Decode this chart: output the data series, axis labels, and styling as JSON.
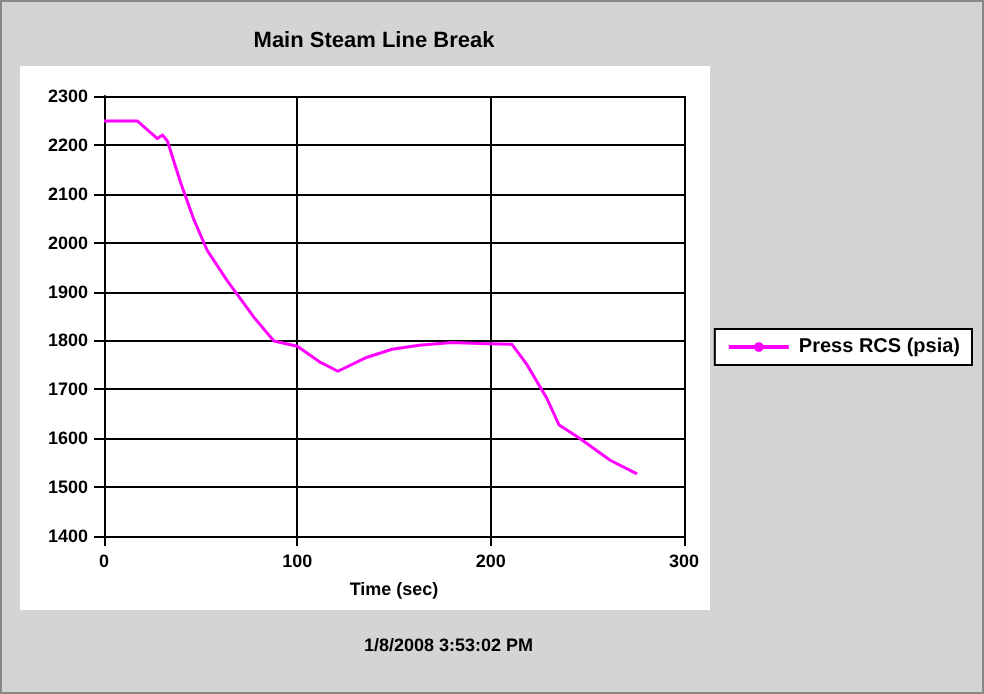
{
  "chart_data": {
    "type": "line",
    "title": "Main Steam Line Break",
    "xlabel": "Time (sec)",
    "annotations": [
      "1/8/2008 3:53:02 PM"
    ],
    "x": [
      0,
      17.2,
      27.6,
      30.3,
      32.8,
      39.7,
      46.6,
      53.4,
      63.8,
      77.6,
      87.9,
      100,
      112,
      121,
      135,
      149,
      163,
      180,
      194,
      211,
      218.7,
      229,
      235.4,
      246,
      261.8,
      275.7
    ],
    "series": [
      {
        "name": "Press RCS (psia)",
        "color": "#ff00ff",
        "values": [
          2249,
          2249,
          2213,
          2220,
          2208,
          2122,
          2046,
          1984,
          1922,
          1847,
          1799,
          1788,
          1755,
          1737,
          1764,
          1782,
          1790,
          1796,
          1794,
          1792,
          1751,
          1682,
          1627,
          1600,
          1555,
          1527
        ]
      }
    ],
    "xlim": [
      0,
      300
    ],
    "xticks": [
      0,
      100,
      200,
      300
    ],
    "ylim": [
      1400,
      2300
    ],
    "yticks": [
      1400,
      1500,
      1600,
      1700,
      1800,
      1900,
      2000,
      2100,
      2200,
      2300
    ],
    "grid": true,
    "legend": "right",
    "line_style": "solid"
  }
}
